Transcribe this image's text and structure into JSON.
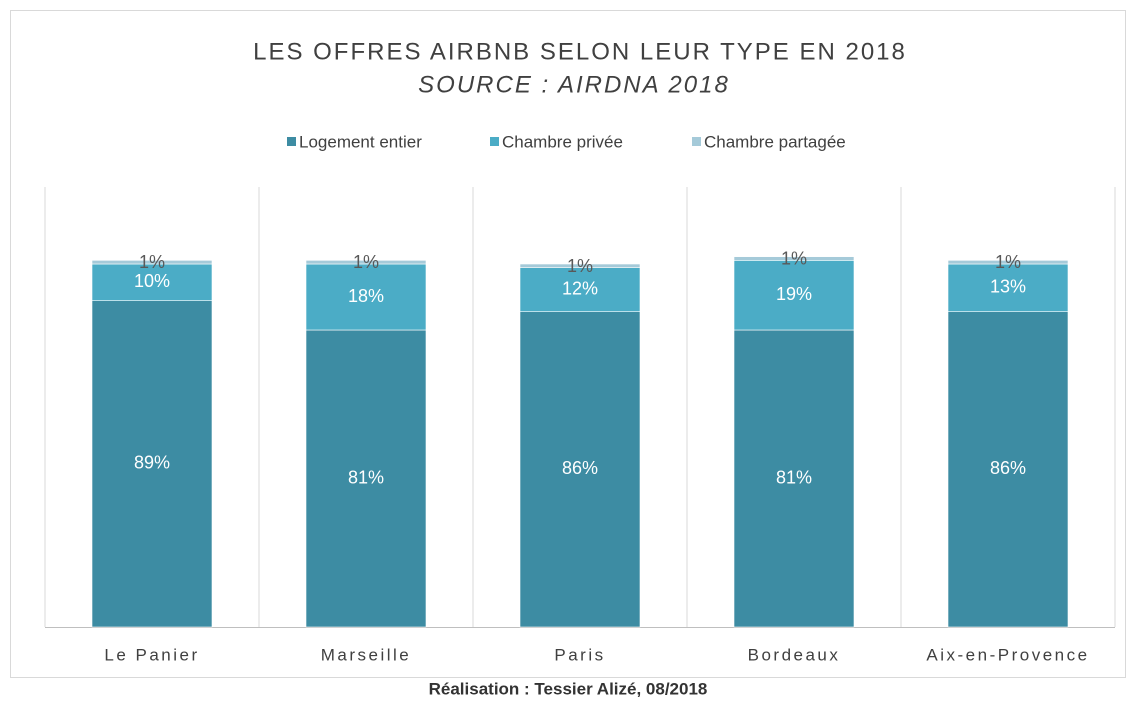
{
  "chart_data": {
    "type": "stacked_bar",
    "title": "LES OFFRES AIRBNB SELON LEUR TYPE EN 2018",
    "subtitle": "SOURCE : AIRDNA 2018",
    "footer": "Réalisation : Tessier Alizé, 08/2018",
    "categories": [
      "Le Panier",
      "Marseille",
      "Paris",
      "Bordeaux",
      "Aix-en-Provence"
    ],
    "series": [
      {
        "name": "Logement entier",
        "color": "#3d8ca3",
        "values": [
          89,
          81,
          86,
          81,
          86
        ],
        "value_labels": [
          "89%",
          "81%",
          "86%",
          "81%",
          "86%"
        ]
      },
      {
        "name": "Chambre privée",
        "color": "#4bacc6",
        "values": [
          10,
          18,
          12,
          19,
          13
        ],
        "value_labels": [
          "10%",
          "18%",
          "12%",
          "19%",
          "13%"
        ]
      },
      {
        "name": "Chambre partagée",
        "color": "#a5cad9",
        "values": [
          1,
          1,
          1,
          1,
          1
        ],
        "value_labels": [
          "1%",
          "1%",
          "1%",
          "1%",
          "1%"
        ]
      }
    ],
    "ylim": [
      0,
      120
    ],
    "legend": "top"
  }
}
